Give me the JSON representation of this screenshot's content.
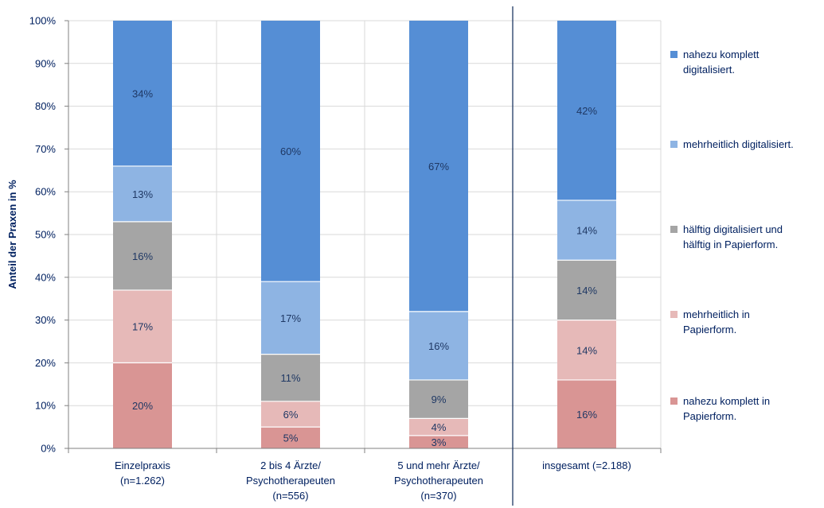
{
  "chart_data": {
    "type": "bar",
    "stacked": true,
    "ylabel": "Anteil der Praxen in %",
    "ylim": [
      0,
      100
    ],
    "y_ticks": [
      "0%",
      "10%",
      "20%",
      "30%",
      "40%",
      "50%",
      "60%",
      "70%",
      "80%",
      "90%",
      "100%"
    ],
    "grid": true,
    "legend_position": "right",
    "categories": [
      [
        "Einzelpraxis",
        "(n=1.262)"
      ],
      [
        "2 bis 4 Ärzte/",
        "Psychotherapeuten",
        "(n=556)"
      ],
      [
        "5 und mehr Ärzte/",
        "Psychotherapeuten",
        "(n=370)"
      ],
      [
        "insgesamt (=2.188)"
      ]
    ],
    "separator_before_category": 3,
    "series": [
      {
        "name": [
          "nahezu komplett in",
          "Papierform."
        ],
        "color": "#d99594",
        "values": [
          20,
          5,
          3,
          16
        ],
        "labels": [
          "20%",
          "5%",
          "3%",
          "16%"
        ]
      },
      {
        "name": [
          "mehrheitlich in",
          "Papierform."
        ],
        "color": "#e6b9b8",
        "values": [
          17,
          6,
          4,
          14
        ],
        "labels": [
          "17%",
          "6%",
          "4%",
          "14%"
        ]
      },
      {
        "name": [
          "hälftig digitalisiert und",
          "hälftig in Papierform."
        ],
        "color": "#a5a5a5",
        "values": [
          16,
          11,
          9,
          14
        ],
        "labels": [
          "16%",
          "11%",
          "9%",
          "14%"
        ]
      },
      {
        "name": [
          "mehrheitlich digitalisiert."
        ],
        "color": "#8eb4e3",
        "values": [
          13,
          17,
          16,
          14
        ],
        "labels": [
          "13%",
          "17%",
          "16%",
          "14%"
        ]
      },
      {
        "name": [
          "nahezu komplett",
          "digitalisiert."
        ],
        "color": "#558ed5",
        "values": [
          34,
          60,
          67,
          42
        ],
        "labels": [
          "34%",
          "60%",
          "67%",
          "42%"
        ]
      }
    ],
    "legend_order": [
      4,
      3,
      2,
      1,
      0
    ]
  }
}
